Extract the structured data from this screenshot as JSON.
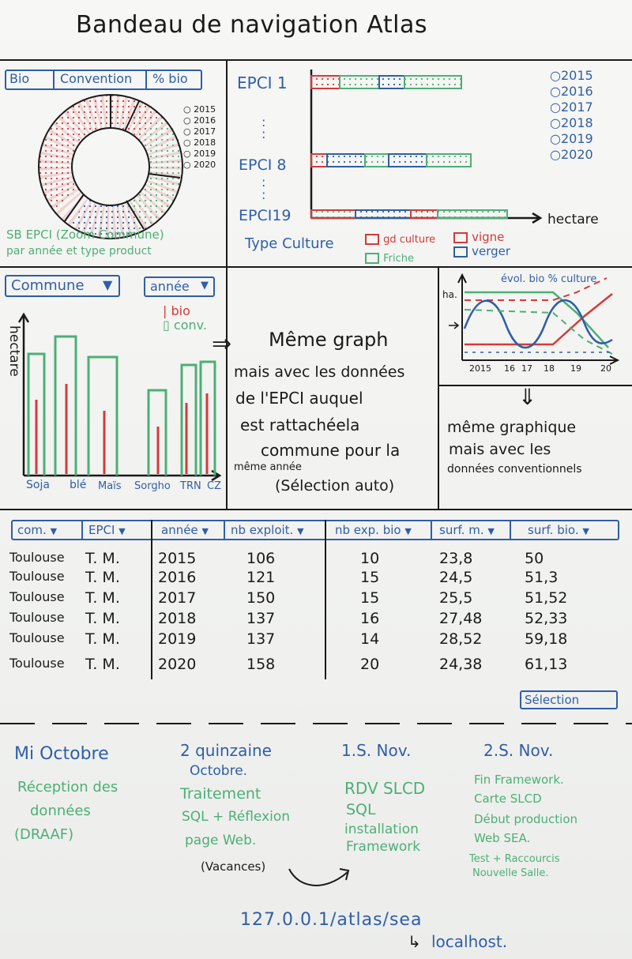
{
  "title": "Bandeau de navigation Atlas",
  "panel1": {
    "tabs": [
      "Bio",
      "Convention",
      "% bio"
    ],
    "years": [
      "2015",
      "2016",
      "2017",
      "2018",
      "2019",
      "2020"
    ],
    "caption_line1": "SB EPCI (Zoom Commune)",
    "caption_line2": "par année et type product"
  },
  "panel2": {
    "epci_labels": [
      "EPCI 1",
      "EPCI 8",
      "EPCI19"
    ],
    "axis_label": "hectare",
    "years": [
      "2015",
      "2016",
      "2017",
      "2018",
      "2019",
      "2020"
    ],
    "legend_title": "Type Culture",
    "legend_items": [
      "gd culture",
      "vigne",
      "verger",
      "Friche"
    ]
  },
  "panel3": {
    "dropdown_commune": "Commune",
    "dropdown_annee": "année",
    "legend_bio": "bio",
    "legend_conv": "conv.",
    "ylabel": "hectare",
    "categories": [
      "Soja",
      "blé",
      "Maïs",
      "Sorgho",
      "TRN",
      "CZ"
    ]
  },
  "panel4": {
    "line1": "Même graph",
    "line2": "mais avec les données",
    "line3": "de l'EPCI auquel",
    "line4": "est rattachéela",
    "line5": "commune pour la",
    "line6": "même année",
    "line7": "(Sélection auto)"
  },
  "panel5": {
    "title": "évol. bio % culture",
    "ylabel": "ha.",
    "x_ticks": [
      "2015",
      "16",
      "17",
      "18",
      "19",
      "20"
    ],
    "note1": "même graphique",
    "note2": "mais avec les",
    "note3": "données conventionnels"
  },
  "table": {
    "headers": [
      "com.",
      "EPCI",
      "année",
      "nb exploit.",
      "nb exp. bio",
      "surf. m.",
      "surf. bio."
    ],
    "rows": [
      [
        "Toulouse",
        "T. M.",
        "2015",
        "106",
        "10",
        "23,8",
        "50"
      ],
      [
        "Toulouse",
        "T. M.",
        "2016",
        "121",
        "15",
        "24,5",
        "51,3"
      ],
      [
        "Toulouse",
        "T. M.",
        "2017",
        "150",
        "15",
        "25,5",
        "51,52"
      ],
      [
        "Toulouse",
        "T. M.",
        "2018",
        "137",
        "16",
        "27,48",
        "52,33"
      ],
      [
        "Toulouse",
        "T. M.",
        "2019",
        "137",
        "14",
        "28,52",
        "59,18"
      ],
      [
        "Toulouse",
        "T. M.",
        "2020",
        "158",
        "20",
        "24,38",
        "61,13"
      ]
    ],
    "selection_button": "Sélection"
  },
  "timeline": [
    {
      "title": "Mi Octobre",
      "lines": [
        "Réception des",
        "données",
        "(DRAAF)"
      ]
    },
    {
      "title": "2 quinzaine",
      "title2": "Octobre.",
      "lines": [
        "Traitement",
        "SQL + Réflexion",
        "page Web."
      ],
      "note": "(Vacances)"
    },
    {
      "title": "1.S. Nov.",
      "lines": [
        "RDV SLCD",
        "SQL",
        "installation",
        "Framework"
      ]
    },
    {
      "title": "2.S. Nov.",
      "lines": [
        "Fin Framework.",
        "Carte SLCD",
        "Début production",
        "Web SEA."
      ],
      "small": [
        "Test + Raccourcis",
        "Nouvelle Salle."
      ]
    }
  ],
  "footer": {
    "url": "127.0.0.1/atlas/sea",
    "localhost": "localhost."
  },
  "colors": {
    "red": "#d43a3a",
    "blue": "#2f5ea8",
    "green": "#4caf76",
    "ink": "#1a1a1a"
  }
}
